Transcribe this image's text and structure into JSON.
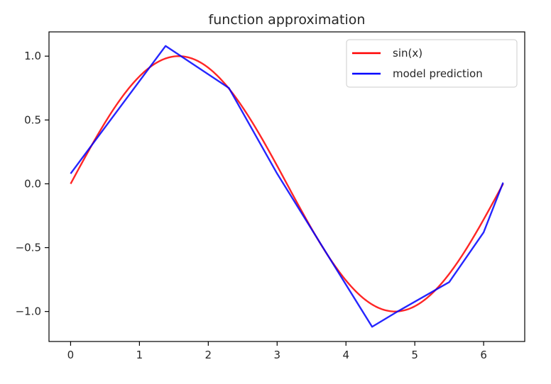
{
  "chart_data": {
    "type": "line",
    "title": "function approximation",
    "xlabel": "",
    "ylabel": "",
    "xlim": [
      -0.314,
      6.597
    ],
    "ylim": [
      -1.235,
      1.19
    ],
    "xticks": [
      0,
      1,
      2,
      3,
      4,
      5,
      6
    ],
    "yticks": [
      1.0,
      0.5,
      0.0,
      -0.5,
      -1.0
    ],
    "xtick_labels": [
      "0",
      "1",
      "2",
      "3",
      "4",
      "5",
      "6"
    ],
    "ytick_labels": [
      "1.0",
      "0.5",
      "0.0",
      "−0.5",
      "−1.0"
    ],
    "grid": false,
    "legend_position": "top-right",
    "series": [
      {
        "name": "sin(x)",
        "color": "#ff0000",
        "function": "sin",
        "x_range": [
          0,
          6.2832
        ]
      },
      {
        "name": "model prediction",
        "color": "#0000ff",
        "x": [
          0,
          1.38,
          2.3,
          3.0,
          4.38,
          4.75,
          5.5,
          6.0,
          6.283
        ],
        "y": [
          0.08,
          1.08,
          0.75,
          0.08,
          -1.12,
          -1.0,
          -0.77,
          -0.38,
          0.01
        ]
      }
    ]
  }
}
